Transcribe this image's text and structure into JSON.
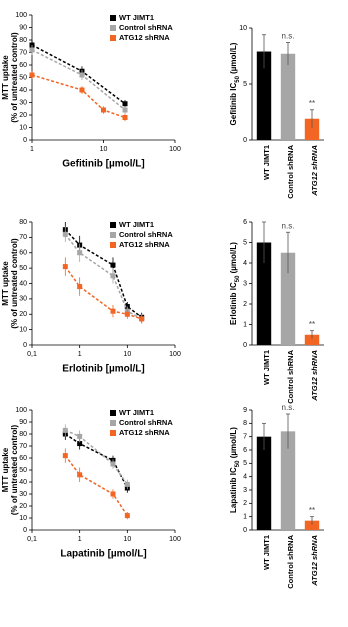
{
  "chart_data": [
    {
      "type": "line",
      "xscale": "log",
      "xlabel": "Gefitinib [µmol/L]",
      "ylabel": [
        "MTT uptake",
        "(% of untreated control)"
      ],
      "xlim": [
        1,
        100
      ],
      "xticks": [
        1,
        10,
        100
      ],
      "ylim": [
        0,
        100
      ],
      "yticks": [
        0,
        10,
        20,
        30,
        40,
        50,
        60,
        70,
        80,
        90,
        100
      ],
      "legend": "top-right",
      "series": [
        {
          "name": "WT JIMT1",
          "color": "#000000",
          "x": [
            1,
            5,
            20
          ],
          "values": [
            76,
            55,
            29
          ],
          "errors": [
            4,
            4,
            3
          ]
        },
        {
          "name": "Control shRNA",
          "color": "#a6a6a6",
          "x": [
            1,
            5,
            20
          ],
          "values": [
            72,
            52,
            24
          ],
          "errors": [
            4,
            4,
            3
          ]
        },
        {
          "name": "ATG12 shRNA",
          "color": "#f26522",
          "x": [
            1,
            5,
            10,
            20
          ],
          "values": [
            52,
            40,
            24,
            18
          ],
          "errors": [
            3,
            3,
            3,
            3
          ]
        }
      ]
    },
    {
      "type": "bar",
      "ylabel": [
        "Gefitinib IC",
        "50",
        " (µmol/L)"
      ],
      "categories": [
        "WT JIMT1",
        "Control shRNA",
        "ATG12 shRNA"
      ],
      "colors": [
        "#000000",
        "#a6a6a6",
        "#f26522"
      ],
      "values": [
        7.9,
        7.7,
        1.9
      ],
      "errors": [
        1.5,
        1.0,
        0.8
      ],
      "ylim": [
        0,
        10
      ],
      "yticks": [
        0,
        5,
        10
      ],
      "annotations": [
        {
          "x": "Control shRNA",
          "text": "n.s."
        },
        {
          "x": "ATG12 shRNA",
          "text": "**"
        }
      ]
    },
    {
      "type": "line",
      "xscale": "log",
      "xlabel": "Erlotinib [µmol/L]",
      "ylabel": [
        "MTT uptake",
        "(% of untreated control)"
      ],
      "xlim": [
        0.1,
        100
      ],
      "xticks": [
        {
          "value": 0.1,
          "label": "0,1"
        },
        1,
        10,
        100
      ],
      "ylim": [
        0,
        80
      ],
      "yticks": [
        0,
        10,
        20,
        30,
        40,
        50,
        60,
        70,
        80
      ],
      "legend": "top-right",
      "series": [
        {
          "name": "WT JIMT1",
          "color": "#000000",
          "x": [
            0.5,
            1,
            5,
            10,
            20
          ],
          "values": [
            75,
            65,
            52,
            25,
            18
          ],
          "errors": [
            5,
            6,
            5,
            3,
            3
          ]
        },
        {
          "name": "Control shRNA",
          "color": "#a6a6a6",
          "x": [
            0.5,
            1,
            5,
            10,
            20
          ],
          "values": [
            72,
            60,
            45,
            22,
            17
          ],
          "errors": [
            5,
            6,
            5,
            3,
            3
          ]
        },
        {
          "name": "ATG12 shRNA",
          "color": "#f26522",
          "x": [
            0.5,
            1,
            5,
            10,
            20
          ],
          "values": [
            51,
            38,
            22,
            20,
            17
          ],
          "errors": [
            6,
            6,
            4,
            3,
            3
          ]
        }
      ]
    },
    {
      "type": "bar",
      "ylabel": [
        "Erlotinib IC",
        "50",
        " (µmol/L)"
      ],
      "categories": [
        "WT JIMT1",
        "Control shRNA",
        "ATG12 shRNA"
      ],
      "colors": [
        "#000000",
        "#a6a6a6",
        "#f26522"
      ],
      "values": [
        5.0,
        4.5,
        0.5
      ],
      "errors": [
        1.0,
        1.0,
        0.2
      ],
      "ylim": [
        0,
        6
      ],
      "yticks": [
        0,
        1,
        2,
        3,
        4,
        5,
        6
      ],
      "annotations": [
        {
          "x": "Control shRNA",
          "text": "n.s."
        },
        {
          "x": "ATG12 shRNA",
          "text": "**"
        }
      ]
    },
    {
      "type": "line",
      "xscale": "log",
      "xlabel": "Lapatinib [µmol/L]",
      "ylabel": [
        "MTT uptake",
        "(% of untreated control)"
      ],
      "xlim": [
        0.1,
        100
      ],
      "xticks": [
        {
          "value": 0.1,
          "label": "0,1"
        },
        1,
        10,
        100
      ],
      "ylim": [
        0,
        100
      ],
      "yticks": [
        0,
        10,
        20,
        30,
        40,
        50,
        60,
        70,
        80,
        90,
        100
      ],
      "legend": "top-right",
      "series": [
        {
          "name": "WT JIMT1",
          "color": "#000000",
          "x": [
            0.5,
            1,
            5,
            10
          ],
          "values": [
            80,
            72,
            58,
            35
          ],
          "errors": [
            5,
            5,
            4,
            4
          ]
        },
        {
          "name": "Control shRNA",
          "color": "#a6a6a6",
          "x": [
            0.5,
            1,
            5,
            10
          ],
          "values": [
            83,
            78,
            55,
            38
          ],
          "errors": [
            5,
            5,
            4,
            4
          ]
        },
        {
          "name": "ATG12 shRNA",
          "color": "#f26522",
          "x": [
            0.5,
            1,
            5,
            10
          ],
          "values": [
            62,
            46,
            30,
            12
          ],
          "errors": [
            6,
            6,
            4,
            3
          ]
        }
      ]
    },
    {
      "type": "bar",
      "ylabel": [
        "Lapatinib IC",
        "50",
        " (µmol/L)"
      ],
      "categories": [
        "WT JIMT1",
        "Control shRNA",
        "ATG12 shRNA"
      ],
      "colors": [
        "#000000",
        "#a6a6a6",
        "#f26522"
      ],
      "values": [
        7.0,
        7.4,
        0.7
      ],
      "errors": [
        1.0,
        1.3,
        0.3
      ],
      "ylim": [
        0,
        9
      ],
      "yticks": [
        0,
        1,
        2,
        3,
        4,
        5,
        6,
        7,
        8,
        9
      ],
      "annotations": [
        {
          "x": "Control shRNA",
          "text": "n.s."
        },
        {
          "x": "ATG12 shRNA",
          "text": "**"
        }
      ]
    }
  ]
}
